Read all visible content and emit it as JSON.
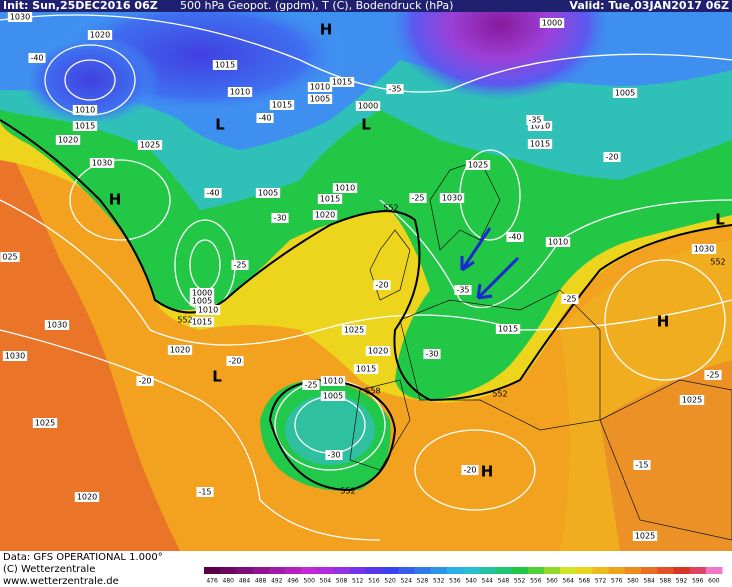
{
  "header": {
    "init": "Init: Sun,25DEC2016 06Z",
    "title": "500 hPa Geopot. (gpdm), T (C), Bodendruck (hPa)",
    "valid": "Valid: Tue,03JAN2017 06Z"
  },
  "isobar_labels": [
    "1030",
    "1020",
    "1015",
    "1010",
    "1010",
    "1015",
    "1020",
    "1025",
    "1030",
    "1010",
    "1005",
    "1015",
    "1000",
    "1015",
    "1005",
    "1010",
    "1015",
    "1020",
    "1030",
    "1025",
    "1010",
    "1015",
    "1005",
    "1000",
    "1010",
    "1030",
    "1015",
    "1025",
    "1020",
    "1015",
    "1010",
    "1005",
    "1000",
    "1005",
    "1010",
    "1015",
    "1030",
    "1020",
    "1030",
    "1025",
    "1020",
    "1025",
    "1025",
    "025"
  ],
  "temperature_labels": [
    "-40",
    "-40",
    "-40",
    "-35",
    "-35",
    "-30",
    "-25",
    "-25",
    "-25",
    "-20",
    "-20",
    "-20",
    "-20",
    "-35",
    "-30",
    "-30",
    "-25",
    "-15",
    "-15",
    "-25",
    "-40",
    "-20"
  ],
  "height_labels": [
    "552",
    "552",
    "552",
    "558",
    "552",
    "552"
  ],
  "pressure_centers": [
    "H",
    "L",
    "L",
    "H",
    "L",
    "H",
    "H",
    "L"
  ],
  "footer": {
    "data": "Data: GFS OPERATIONAL 1.000°",
    "copyright": "(C) Wetterzentrale",
    "url": "www.wetterzentrale.de"
  },
  "colorbar": [
    476,
    480,
    484,
    488,
    492,
    496,
    500,
    504,
    508,
    512,
    516,
    520,
    524,
    528,
    532,
    536,
    540,
    544,
    548,
    552,
    556,
    560,
    564,
    568,
    572,
    576,
    580,
    584,
    588,
    592,
    596,
    600
  ]
}
